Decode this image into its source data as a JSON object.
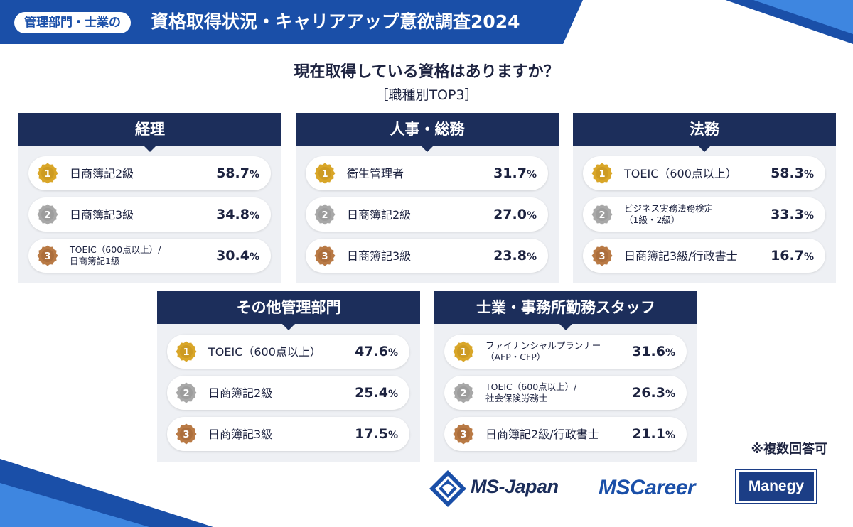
{
  "header": {
    "tag": "管理部門・士業の",
    "title": "資格取得状況・キャリアアップ意欲調査2024"
  },
  "question": "現在取得している資格はありますか？",
  "subtitle": "［職種別TOP3］",
  "note": "※複数回答可",
  "logos": {
    "ms_japan": "MS-Japan",
    "ms_career": "MSCareer",
    "manegy": "Manegy"
  },
  "colors": {
    "navy": "#1c2e5b",
    "blue": "#1a4fa8",
    "gold": "#d9a628",
    "silver": "#a8a8a8",
    "bronze": "#b97a45"
  },
  "chart_data": {
    "type": "table",
    "title": "現在取得している資格はありますか？［職種別TOP3］",
    "unit": "%",
    "groups": [
      {
        "name": "経理",
        "items": [
          {
            "rank": "1",
            "label": "日商簿記2級",
            "value": 58.7,
            "display": "58.7"
          },
          {
            "rank": "2",
            "label": "日商簿記3級",
            "value": 34.8,
            "display": "34.8"
          },
          {
            "rank": "3",
            "label": "TOEIC（600点以上）/\n日商簿記1級",
            "value": 30.4,
            "display": "30.4"
          }
        ]
      },
      {
        "name": "人事・総務",
        "items": [
          {
            "rank": "1",
            "label": "衛生管理者",
            "value": 31.7,
            "display": "31.7"
          },
          {
            "rank": "2",
            "label": "日商簿記2級",
            "value": 27.0,
            "display": "27.0"
          },
          {
            "rank": "3",
            "label": "日商簿記3級",
            "value": 23.8,
            "display": "23.8"
          }
        ]
      },
      {
        "name": "法務",
        "items": [
          {
            "rank": "1",
            "label": "TOEIC（600点以上）",
            "value": 58.3,
            "display": "58.3"
          },
          {
            "rank": "2",
            "label": "ビジネス実務法務検定\n（1級・2級）",
            "value": 33.3,
            "display": "33.3"
          },
          {
            "rank": "3",
            "label": "日商簿記3級/行政書士",
            "value": 16.7,
            "display": "16.7"
          }
        ]
      },
      {
        "name": "その他管理部門",
        "items": [
          {
            "rank": "1",
            "label": "TOEIC（600点以上）",
            "value": 47.6,
            "display": "47.6"
          },
          {
            "rank": "2",
            "label": "日商簿記2級",
            "value": 25.4,
            "display": "25.4"
          },
          {
            "rank": "3",
            "label": "日商簿記3級",
            "value": 17.5,
            "display": "17.5"
          }
        ]
      },
      {
        "name": "士業・事務所勤務スタッフ",
        "items": [
          {
            "rank": "1",
            "label": "ファイナンシャルプランナー\n（AFP・CFP）",
            "value": 31.6,
            "display": "31.6"
          },
          {
            "rank": "2",
            "label": "TOEIC（600点以上）/\n社会保険労務士",
            "value": 26.3,
            "display": "26.3"
          },
          {
            "rank": "3",
            "label": "日商簿記2級/行政書士",
            "value": 21.1,
            "display": "21.1"
          }
        ]
      }
    ]
  }
}
